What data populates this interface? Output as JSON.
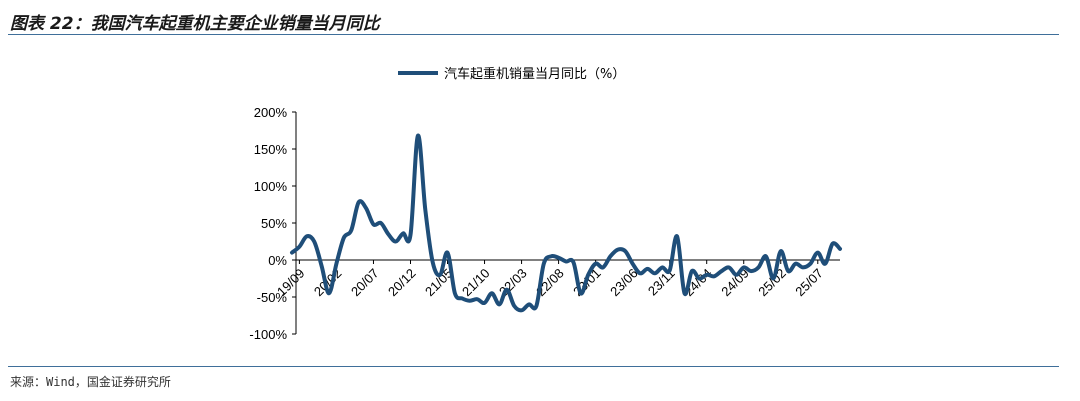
{
  "figure": {
    "title": "图表 22：我国汽车起重机主要企业销量当月同比",
    "source": "来源：Wind，国金证券研究所"
  },
  "chart_data": {
    "type": "line",
    "title": "",
    "xlabel": "",
    "ylabel": "",
    "ylim": [
      -100,
      200
    ],
    "yticks": [
      -100,
      -50,
      0,
      50,
      100,
      150,
      200
    ],
    "ytick_labels": [
      "-100%",
      "-50%",
      "0%",
      "50%",
      "100%",
      "150%",
      "200%"
    ],
    "xtick_labels": [
      "19/09",
      "20/02",
      "20/07",
      "20/12",
      "21/05",
      "21/10",
      "22/03",
      "22/08",
      "23/01",
      "23/06",
      "23/11",
      "24/04",
      "24/09",
      "25/02",
      "25/07"
    ],
    "grid": false,
    "legend_position": "top-center",
    "color": "#1f4e79",
    "series": [
      {
        "name": "汽车起重机销量当月同比（%）",
        "x": [
          "19/08",
          "19/09",
          "19/10",
          "19/11",
          "19/12",
          "20/01",
          "20/02",
          "20/03",
          "20/04",
          "20/05",
          "20/06",
          "20/07",
          "20/08",
          "20/09",
          "20/10",
          "20/11",
          "20/12",
          "21/01",
          "21/02",
          "21/03",
          "21/04",
          "21/05",
          "21/06",
          "21/07",
          "21/08",
          "21/09",
          "21/10",
          "21/11",
          "21/12",
          "22/01",
          "22/02",
          "22/03",
          "22/04",
          "22/05",
          "22/06",
          "22/07",
          "22/08",
          "22/09",
          "22/10",
          "22/11",
          "22/12",
          "23/01",
          "23/02",
          "23/03",
          "23/04",
          "23/05",
          "23/06",
          "23/07",
          "23/08",
          "23/09",
          "23/10",
          "23/11",
          "23/12",
          "24/01",
          "24/02",
          "24/03",
          "24/04",
          "24/05",
          "24/06",
          "24/07",
          "24/08",
          "24/09",
          "24/10",
          "24/11",
          "24/12",
          "25/01",
          "25/02",
          "25/03",
          "25/04",
          "25/05",
          "25/06",
          "25/07",
          "25/08",
          "25/09",
          "25/10"
        ],
        "values": [
          10,
          18,
          32,
          25,
          -8,
          -45,
          -5,
          30,
          40,
          78,
          70,
          48,
          50,
          35,
          25,
          36,
          34,
          168,
          68,
          -3,
          -20,
          10,
          -45,
          -52,
          -55,
          -53,
          -58,
          -45,
          -60,
          -40,
          -62,
          -68,
          -60,
          -62,
          -5,
          5,
          3,
          -2,
          -3,
          -45,
          -20,
          -5,
          -10,
          5,
          14,
          12,
          -5,
          -18,
          -12,
          -18,
          -10,
          -14,
          32,
          -45,
          -15,
          -25,
          -20,
          -22,
          -15,
          -10,
          -20,
          -10,
          -15,
          -10,
          5,
          -25,
          12,
          -15,
          -5,
          -10,
          -5,
          10,
          -5,
          22,
          15
        ]
      }
    ]
  }
}
